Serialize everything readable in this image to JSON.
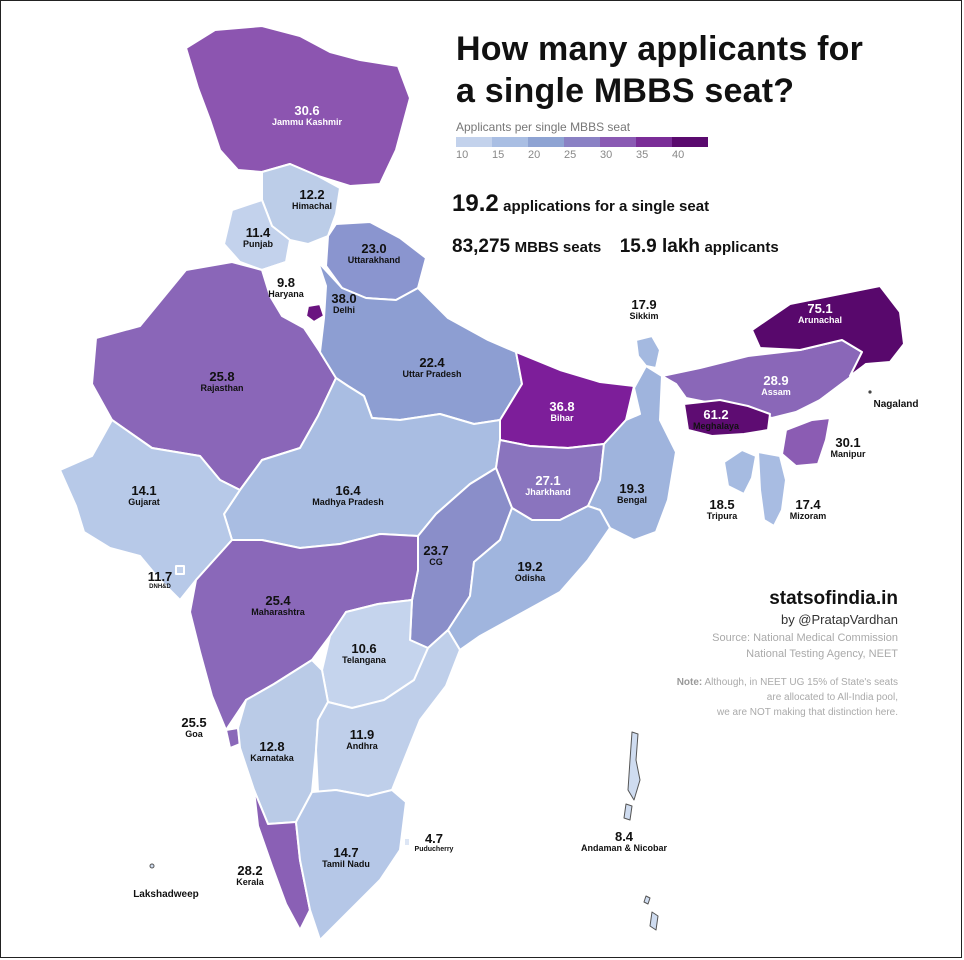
{
  "title_line1": "How many applicants for",
  "title_line2": "a single MBBS seat?",
  "legend": {
    "title": "Applicants per single MBBS seat",
    "ticks": [
      "10",
      "15",
      "20",
      "25",
      "30",
      "35",
      "40"
    ],
    "colors": [
      "#c3d2ec",
      "#a9bee3",
      "#8ea3d3",
      "#8a81c4",
      "#8a5ab3",
      "#7a2d97",
      "#5a0a6e"
    ]
  },
  "stats": {
    "ratio": "19.2",
    "ratio_text": "applications for a single seat",
    "seats": "83,275",
    "seats_text": "MBBS seats",
    "applicants": "15.9 lakh",
    "applicants_text": "applicants"
  },
  "regions": [
    {
      "name": "Jammu Kashmir",
      "value": "30.6",
      "color": "#8c55b0"
    },
    {
      "name": "Himachal",
      "value": "12.2",
      "color": "#bccde8"
    },
    {
      "name": "Punjab",
      "value": "11.4",
      "color": "#c3d2ec"
    },
    {
      "name": "Haryana",
      "value": "9.8",
      "color": "#ffffff"
    },
    {
      "name": "Delhi",
      "value": "38.0",
      "color": "#6a1480"
    },
    {
      "name": "Uttarakhand",
      "value": "23.0",
      "color": "#8a95cf"
    },
    {
      "name": "Rajasthan",
      "value": "25.8",
      "color": "#8a66b8"
    },
    {
      "name": "Uttar Pradesh",
      "value": "22.4",
      "color": "#8d9ed2"
    },
    {
      "name": "Bihar",
      "value": "36.8",
      "color": "#7d1e9a"
    },
    {
      "name": "Sikkim",
      "value": "17.9",
      "color": "#a4b9e0"
    },
    {
      "name": "Arunachal",
      "value": "75.1",
      "color": "#58086c"
    },
    {
      "name": "Assam",
      "value": "28.9",
      "color": "#8a67b8"
    },
    {
      "name": "Nagaland",
      "value": "",
      "color": "#ffffff"
    },
    {
      "name": "Meghalaya",
      "value": "61.2",
      "color": "#5e0c72"
    },
    {
      "name": "Manipur",
      "value": "30.1",
      "color": "#8b5cb3"
    },
    {
      "name": "Tripura",
      "value": "18.5",
      "color": "#a6bbe1"
    },
    {
      "name": "Mizoram",
      "value": "17.4",
      "color": "#a8bce2"
    },
    {
      "name": "Gujarat",
      "value": "14.1",
      "color": "#b7c9e8"
    },
    {
      "name": "DNH&D",
      "value": "11.7",
      "color": "#c0d0eb"
    },
    {
      "name": "Madhya Pradesh",
      "value": "16.4",
      "color": "#a9bde2"
    },
    {
      "name": "Jharkhand",
      "value": "27.1",
      "color": "#8a74be"
    },
    {
      "name": "Bengal",
      "value": "19.3",
      "color": "#9fb4dd"
    },
    {
      "name": "CG",
      "value": "23.7",
      "color": "#8a8ec9"
    },
    {
      "name": "Odisha",
      "value": "19.2",
      "color": "#a0b5de"
    },
    {
      "name": "Maharashtra",
      "value": "25.4",
      "color": "#8a68b9"
    },
    {
      "name": "Telangana",
      "value": "10.6",
      "color": "#c5d4ed"
    },
    {
      "name": "Goa",
      "value": "25.5",
      "color": "#8a68b9"
    },
    {
      "name": "Karnataka",
      "value": "12.8",
      "color": "#bacbe7"
    },
    {
      "name": "Andhra",
      "value": "11.9",
      "color": "#bfcfea"
    },
    {
      "name": "Kerala",
      "value": "28.2",
      "color": "#8a60b5"
    },
    {
      "name": "Tamil Nadu",
      "value": "14.7",
      "color": "#b5c7e7"
    },
    {
      "name": "Puducherry",
      "value": "4.7",
      "color": "#dde6f5"
    },
    {
      "name": "Andaman & Nicobar",
      "value": "8.4",
      "color": "#cfdcf0"
    },
    {
      "name": "Lakshadweep",
      "value": "",
      "color": "#cfdcf0"
    }
  ],
  "credits": {
    "site": "statsofindia.in",
    "author": "by @PratapVardhan",
    "source1": "Source: National Medical Commission",
    "source2": "National Testing Agency, NEET",
    "note_label": "Note:",
    "note_line1": "Although, in NEET UG 15% of State's seats",
    "note_line2": "are allocated to All-India pool,",
    "note_line3": "we are NOT making that distinction here."
  }
}
